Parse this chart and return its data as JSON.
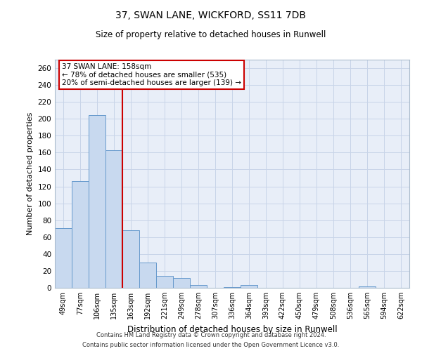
{
  "title1": "37, SWAN LANE, WICKFORD, SS11 7DB",
  "title2": "Size of property relative to detached houses in Runwell",
  "xlabel": "Distribution of detached houses by size in Runwell",
  "ylabel": "Number of detached properties",
  "categories": [
    "49sqm",
    "77sqm",
    "106sqm",
    "135sqm",
    "163sqm",
    "192sqm",
    "221sqm",
    "249sqm",
    "278sqm",
    "307sqm",
    "336sqm",
    "364sqm",
    "393sqm",
    "422sqm",
    "450sqm",
    "479sqm",
    "508sqm",
    "536sqm",
    "565sqm",
    "594sqm",
    "622sqm"
  ],
  "values": [
    71,
    126,
    204,
    163,
    68,
    30,
    14,
    12,
    3,
    0,
    1,
    3,
    0,
    0,
    0,
    0,
    0,
    0,
    2,
    0,
    0
  ],
  "bar_color": "#c8d9ef",
  "bar_edge_color": "#6699cc",
  "grid_color": "#c8d4e8",
  "background_color": "#e8eef8",
  "vline_color": "#cc0000",
  "annotation_text": "37 SWAN LANE: 158sqm\n← 78% of detached houses are smaller (535)\n20% of semi-detached houses are larger (139) →",
  "annotation_box_facecolor": "#ffffff",
  "annotation_box_edgecolor": "#cc0000",
  "ylim": [
    0,
    270
  ],
  "yticks": [
    0,
    20,
    40,
    60,
    80,
    100,
    120,
    140,
    160,
    180,
    200,
    220,
    240,
    260
  ],
  "footer1": "Contains HM Land Registry data © Crown copyright and database right 2024.",
  "footer2": "Contains public sector information licensed under the Open Government Licence v3.0."
}
